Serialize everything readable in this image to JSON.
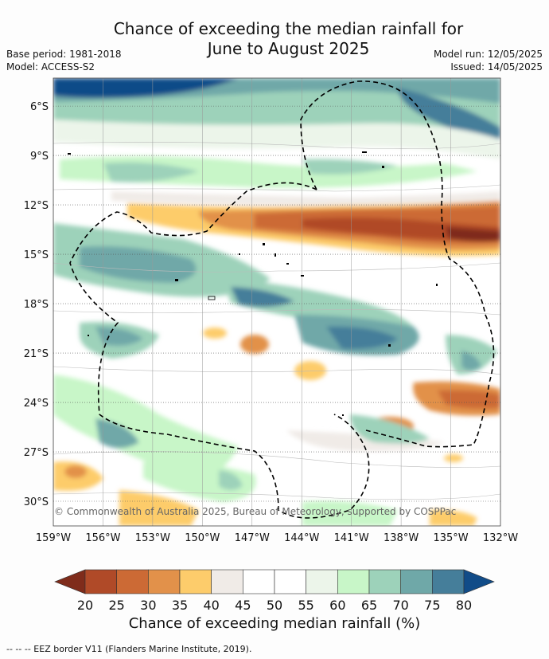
{
  "title": {
    "line1": "Chance of exceeding the median rainfall for",
    "line2": "June to August 2025"
  },
  "meta": {
    "base_period": "Base period: 1981-2018",
    "model": "Model: ACCESS-S2",
    "model_run": "Model run: 12/05/2025",
    "issued": "Issued: 14/05/2025"
  },
  "map": {
    "lat_labels": [
      "6°S",
      "9°S",
      "12°S",
      "15°S",
      "18°S",
      "21°S",
      "24°S",
      "27°S",
      "30°S"
    ],
    "lat_values": [
      -6,
      -9,
      -12,
      -15,
      -18,
      -21,
      -24,
      -27,
      -30
    ],
    "lon_labels": [
      "159°W",
      "156°W",
      "153°W",
      "150°W",
      "147°W",
      "144°W",
      "141°W",
      "138°W",
      "135°W",
      "132°W"
    ],
    "lon_values": [
      -159,
      -156,
      -153,
      -150,
      -147,
      -144,
      -141,
      -138,
      -135,
      -132
    ],
    "lat_range": [
      -4.3,
      -31.5
    ],
    "lon_range": [
      -159,
      -132
    ],
    "copyright": "© Commonwealth of Australia 2025, Bureau of Meteorology, supported by COSPPac",
    "eez_border_style": "dashed black"
  },
  "colorbar": {
    "ticks": [
      "20",
      "25",
      "30",
      "35",
      "40",
      "45",
      "50",
      "55",
      "60",
      "65",
      "70",
      "75",
      "80"
    ],
    "colors": [
      "#7f2c1b",
      "#b04a28",
      "#cc6a35",
      "#e2914a",
      "#fdcc6b",
      "#f0ebe7",
      "#ffffff",
      "#ffffff",
      "#ecf5ea",
      "#c8f6c8",
      "#9dd2ba",
      "#6fa8a8",
      "#457e9a",
      "#114c88"
    ],
    "title": "Chance of exceeding median rainfall (%)"
  },
  "footer": "--  --  -- EEZ border V11 (Flanders Marine Institute, 2019)."
}
